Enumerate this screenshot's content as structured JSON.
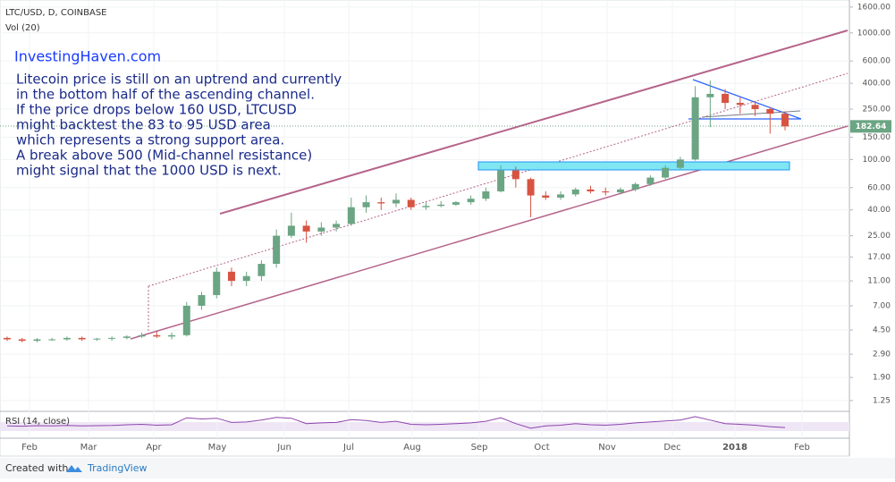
{
  "chart_data": {
    "type": "candlestick",
    "title": "LTC/USD, D, COINBASE",
    "subtitle": "Vol (20)",
    "log_scale": true,
    "up_color": "#6ba583",
    "down_color": "#d75442",
    "ylim": [
      1.06,
      1760
    ],
    "yticks": [
      {
        "value": 1.25,
        "label": "1.25"
      },
      {
        "value": 1.9,
        "label": "1.90"
      },
      {
        "value": 2.9,
        "label": "2.90"
      },
      {
        "value": 4.5,
        "label": "4.50"
      },
      {
        "value": 7,
        "label": "7.00"
      },
      {
        "value": 11,
        "label": "11.00"
      },
      {
        "value": 17,
        "label": "17.00"
      },
      {
        "value": 25,
        "label": "25.00"
      },
      {
        "value": 40,
        "label": "40.00"
      },
      {
        "value": 60,
        "label": "60.00"
      },
      {
        "value": 100,
        "label": "100.00"
      },
      {
        "value": 150,
        "label": "150.00"
      },
      {
        "value": 250,
        "label": "250.00"
      },
      {
        "value": 400,
        "label": "400.00"
      },
      {
        "value": 600,
        "label": "600.00"
      },
      {
        "value": 1000,
        "label": "1000.00"
      },
      {
        "value": 1600,
        "label": "1600.00"
      }
    ],
    "x_labels": [
      "Feb",
      "Mar",
      "Apr",
      "May",
      "Jun",
      "Jul",
      "Aug",
      "Sep",
      "Oct",
      "Nov",
      "Dec",
      "2018",
      "Feb"
    ],
    "open": [
      3.9,
      3.8,
      3.7,
      3.8,
      3.8,
      3.9,
      3.8,
      3.85,
      3.9,
      4.0,
      4.1,
      4.0,
      4.1,
      7.0,
      8.5,
      13,
      11,
      12,
      15,
      25,
      30,
      27,
      29,
      31,
      42,
      46,
      45,
      48,
      42,
      43,
      44,
      46,
      49,
      56,
      82,
      70,
      52,
      50,
      53,
      58,
      56,
      55,
      58,
      64,
      72,
      86,
      100,
      310,
      330,
      280,
      270,
      250,
      230
    ],
    "high": [
      4.0,
      3.9,
      3.9,
      3.9,
      4.0,
      4.0,
      3.9,
      4.0,
      4.1,
      4.3,
      4.4,
      4.3,
      7.5,
      9.0,
      14,
      14,
      13,
      16,
      28,
      38,
      33,
      32,
      33,
      50,
      52,
      50,
      54,
      50,
      46,
      47,
      47,
      52,
      60,
      90,
      88,
      72,
      56,
      56,
      60,
      62,
      60,
      60,
      66,
      75,
      90,
      105,
      380,
      420,
      360,
      310,
      290,
      260,
      240
    ],
    "low": [
      3.7,
      3.6,
      3.6,
      3.7,
      3.7,
      3.7,
      3.7,
      3.7,
      3.8,
      3.9,
      3.9,
      3.8,
      4.0,
      6.5,
      8.0,
      10,
      10,
      11,
      14,
      24,
      22,
      25,
      27,
      30,
      38,
      40,
      42,
      40,
      40,
      42,
      43,
      44,
      47,
      55,
      60,
      35,
      48,
      48,
      51,
      54,
      52,
      53,
      56,
      62,
      70,
      84,
      98,
      180,
      250,
      230,
      220,
      160,
      170
    ],
    "close": [
      3.8,
      3.7,
      3.8,
      3.8,
      3.9,
      3.8,
      3.85,
      3.9,
      4.0,
      4.1,
      4.0,
      4.1,
      7.0,
      8.5,
      13,
      11,
      12,
      15,
      25,
      30,
      27,
      29,
      31,
      42,
      46,
      45,
      48,
      42,
      43,
      44,
      46,
      49,
      56,
      82,
      70,
      52,
      50,
      53,
      58,
      56,
      55,
      58,
      64,
      72,
      86,
      100,
      310,
      330,
      280,
      270,
      250,
      230,
      182.64
    ],
    "rsi": {
      "name": "RSI (14, close)",
      "color": "#8e44ad",
      "ylim": [
        0,
        100
      ],
      "values": [
        45,
        44,
        46,
        45,
        47,
        45,
        46,
        47,
        50,
        52,
        48,
        50,
        80,
        75,
        78,
        60,
        62,
        70,
        82,
        78,
        55,
        58,
        60,
        72,
        68,
        60,
        65,
        52,
        50,
        52,
        55,
        58,
        65,
        80,
        55,
        35,
        45,
        48,
        55,
        50,
        48,
        52,
        58,
        62,
        66,
        70,
        85,
        70,
        55,
        52,
        48,
        42,
        38
      ]
    }
  },
  "brand": "InvestingHaven.com",
  "note": [
    "Litecoin price is still on an uptrend and currently",
    "in the bottom half of the ascending channel.",
    "If the price drops below 160 USD, LTCUSD",
    "might backtest the 83 to 95 USD area",
    "which represents a strong support area.",
    "A break above 500 (Mid-channel resistance)",
    "might signal that the 1000 USD is next."
  ],
  "footer": {
    "created": "Created with",
    "logo": "TradingView"
  }
}
